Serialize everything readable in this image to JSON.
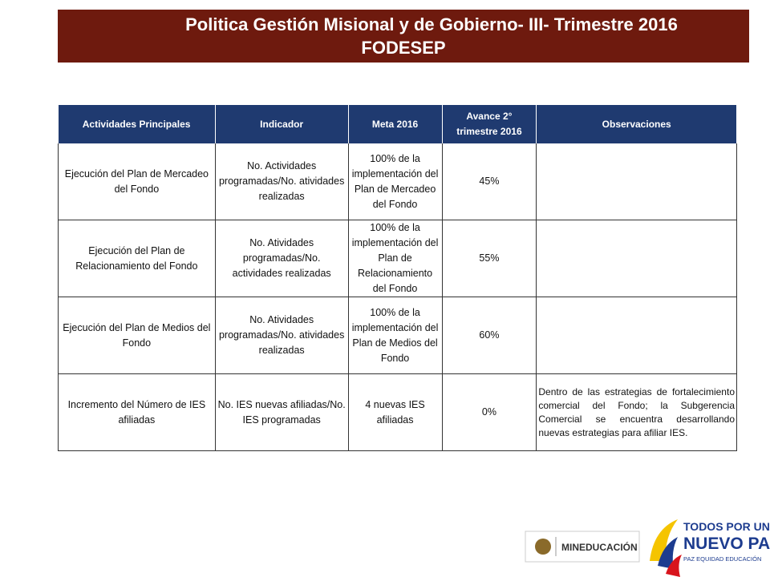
{
  "header": {
    "title": [
      "Politica Gestión Misional y de Gobierno- III- Trimestre 2016",
      "FODESEP"
    ]
  },
  "table": {
    "columns": [
      "Actividades Principales",
      "Indicador",
      "Meta 2016",
      "Avance 2° trimestre 2016",
      "Observaciones"
    ],
    "rows": [
      [
        "Ejecución del Plan de Mercadeo del Fondo",
        "No. Actividades programadas/No. atividades realizadas",
        "100% de la implementación del Plan de Mercadeo del Fondo",
        "45%",
        ""
      ],
      [
        "Ejecución del Plan de Relacionamiento del Fondo",
        "No. Atividades programadas/No. actividades realizadas",
        "100% de la implementación del Plan de Relacionamiento del Fondo",
        "55%",
        ""
      ],
      [
        "Ejecución del Plan de Medios del Fondo",
        "No. Atividades programadas/No. atividades realizadas",
        "100% de la implementación del Plan de Medios del Fondo",
        "60%",
        ""
      ],
      [
        "Incremento del Número de IES afiliadas",
        "No. IES nuevas afiliadas/No. IES programadas",
        "4 nuevas IES afiliadas",
        "0%",
        "Dentro de las estrategias de fortalecimiento comercial del Fondo; la Subgerencia Comercial se encuentra desarrollando nuevas estrategias para afiliar IES."
      ]
    ]
  },
  "footer": {
    "ministry": "MINEDUCACIÓN",
    "slogan": [
      "TODOS POR UN",
      "NUEVO PAÍS"
    ],
    "motto": "PAZ  EQUIDAD  EDUCACIÓN"
  }
}
